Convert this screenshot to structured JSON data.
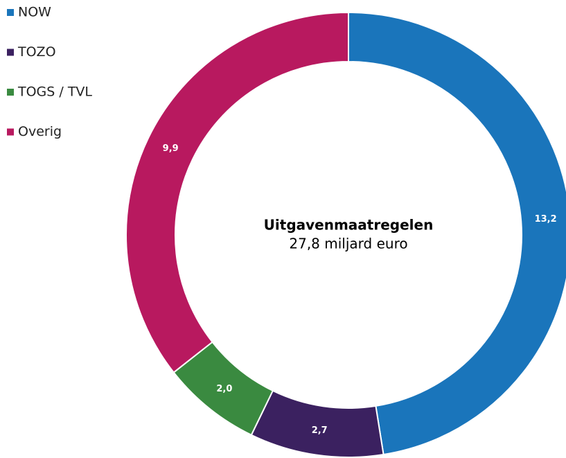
{
  "chart_data": {
    "type": "donut",
    "title": "Uitgavenmaatregelen",
    "subtitle": "27,8 miljard euro",
    "categories": [
      "NOW",
      "TOZO",
      "TOGS / TVL",
      "Overig"
    ],
    "values": [
      13.2,
      2.7,
      2.0,
      9.9
    ],
    "value_labels": [
      "13,2",
      "2,7",
      "2,0",
      "9,9"
    ],
    "colors": [
      "#1a75bb",
      "#3b2160",
      "#3a8a40",
      "#b8195f"
    ],
    "legend": "top-left"
  }
}
